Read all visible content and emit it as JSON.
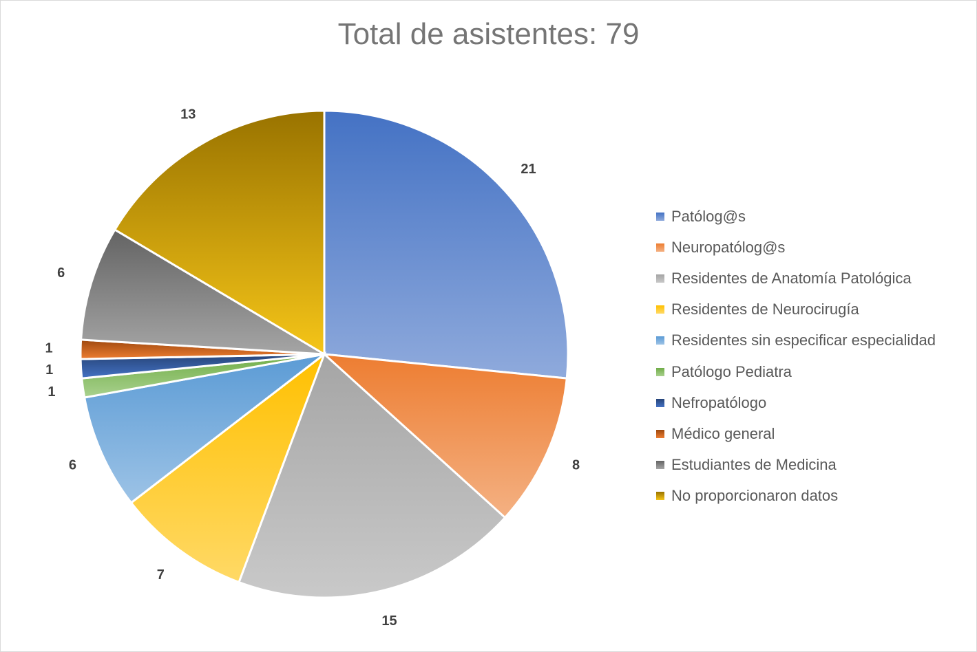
{
  "chart_data": {
    "type": "pie",
    "title": "Total de asistentes: 79",
    "slices": [
      {
        "label": "Patólog@s",
        "value": 21,
        "color": "#4472c4",
        "color_light": "#8faadc"
      },
      {
        "label": "Neuropatólog@s",
        "value": 8,
        "color": "#ed7d31",
        "color_light": "#f4b183"
      },
      {
        "label": "Residentes de Anatomía Patológica",
        "value": 15,
        "color": "#a5a5a5",
        "color_light": "#c9c9c9"
      },
      {
        "label": "Residentes de Neurocirugía",
        "value": 7,
        "color": "#ffc000",
        "color_light": "#ffd966"
      },
      {
        "label": "Residentes sin especificar especialidad",
        "value": 6,
        "color": "#5b9bd5",
        "color_light": "#9dc3e6"
      },
      {
        "label": "Patólogo Pediatra",
        "value": 1,
        "color": "#70ad47",
        "color_light": "#a9d18e"
      },
      {
        "label": "Nefropatólogo",
        "value": 1,
        "color": "#264478",
        "color_light": "#4472c4"
      },
      {
        "label": "Médico general",
        "value": 1,
        "color": "#9e480e",
        "color_light": "#ed7d31"
      },
      {
        "label": "Estudiantes de Medicina",
        "value": 6,
        "color": "#636363",
        "color_light": "#a5a5a5"
      },
      {
        "label": "No proporcionaron datos",
        "value": 13,
        "color": "#997300",
        "color_light": "#f5c518"
      }
    ],
    "data_labels": "outside-end",
    "legend_position": "right"
  }
}
